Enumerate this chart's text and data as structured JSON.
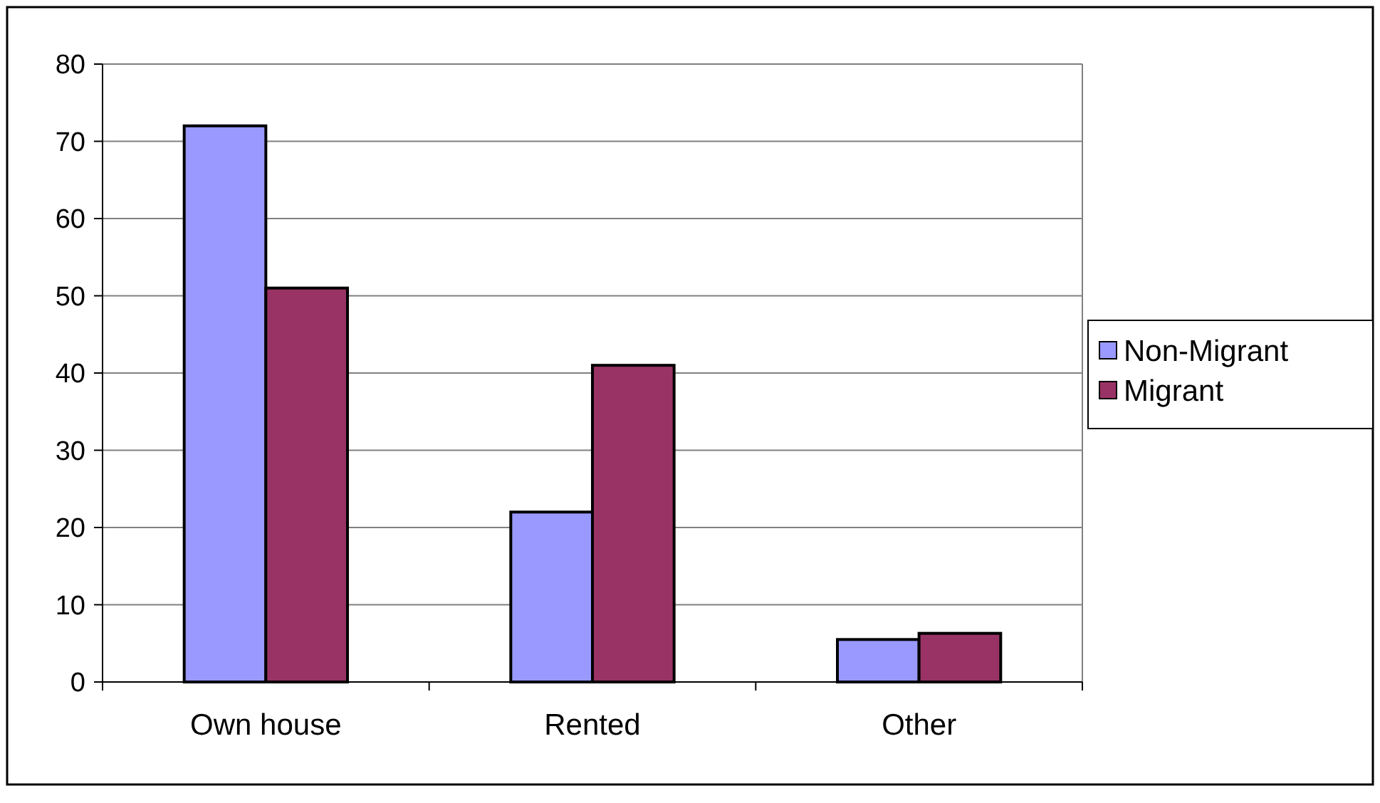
{
  "chart_data": {
    "type": "bar",
    "categories": [
      "Own house",
      "Rented",
      "Other"
    ],
    "series": [
      {
        "name": "Non-Migrant",
        "color": "#9999ff",
        "values": [
          72,
          22,
          5.5
        ]
      },
      {
        "name": "Migrant",
        "color": "#993366",
        "values": [
          51,
          41,
          6.3
        ]
      }
    ],
    "ylim": [
      0,
      80
    ],
    "yticks": [
      0,
      10,
      20,
      30,
      40,
      50,
      60,
      70,
      80
    ],
    "grid": "y",
    "legend": "right"
  }
}
